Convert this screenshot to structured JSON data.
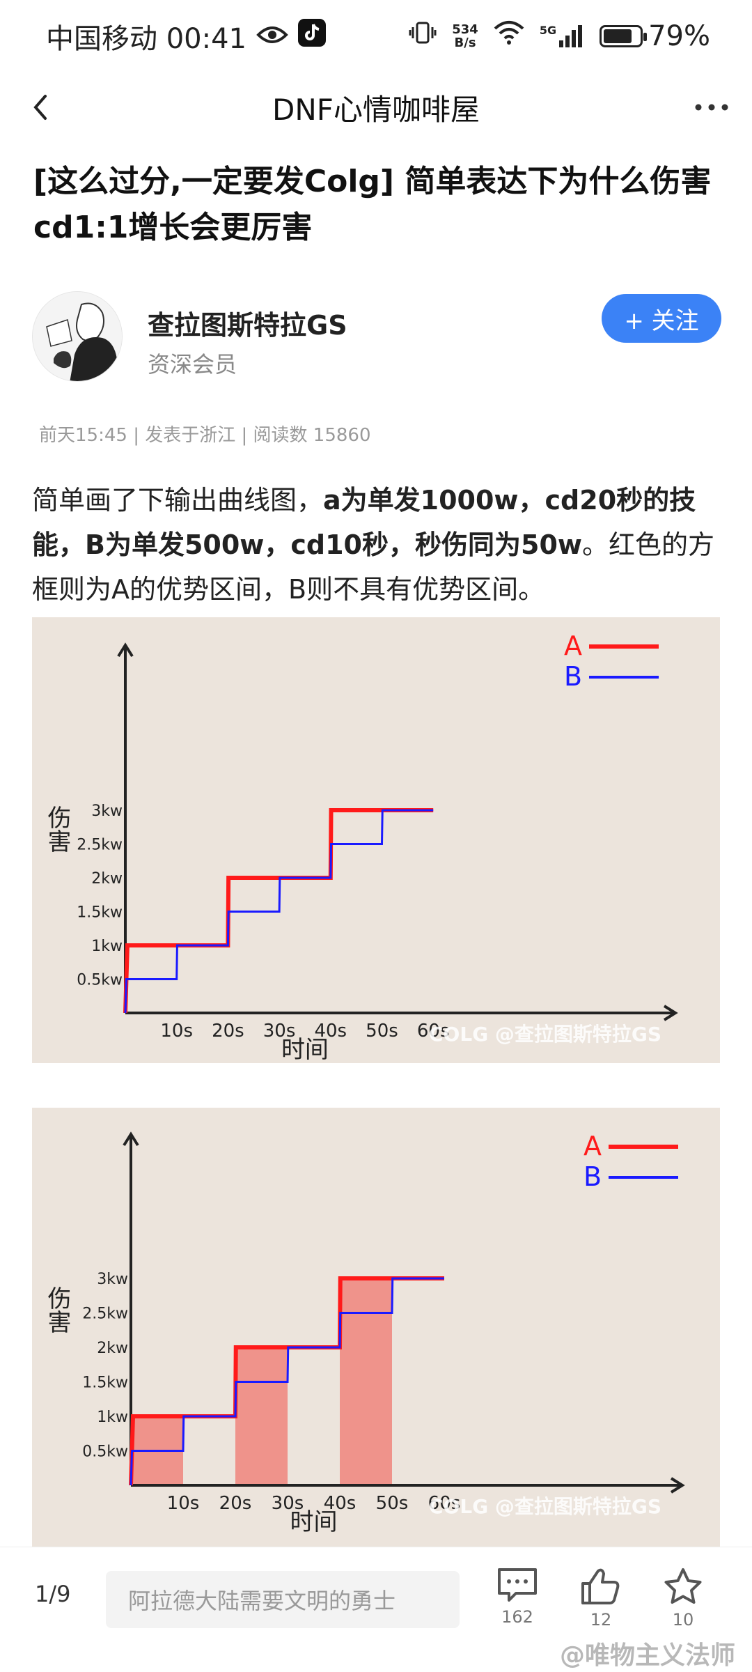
{
  "status_bar": {
    "carrier_time": "中国移动 00:41",
    "net_speed_value": "534",
    "net_speed_unit": "B/s",
    "network": "5G",
    "battery": "79%",
    "battery_level": 0.79
  },
  "nav": {
    "title": "DNF心情咖啡屋"
  },
  "post": {
    "title": "[这么过分,一定要发Colg] 简单表达下为什么伤害cd1:1增长会更厉害",
    "author_name": "查拉图斯特拉GS",
    "author_level": "资深会员",
    "follow_label": "+ 关注",
    "meta": "前天15:45 | 发表于浙江 | 阅读数 15860",
    "body_1": "简单画了下输出曲线图，",
    "body_bold_1": "a为单发1000w，cd20秒的技能，B为单发500w，cd10秒，秒伤同为50w",
    "body_2": "。红色的方框则为A的优势区间，B则不具有优势区间。"
  },
  "chart_data": [
    {
      "type": "line",
      "ylabel": "伤害",
      "xlabel": "时间",
      "x_ticks": [
        "10s",
        "20s",
        "30s",
        "40s",
        "50s",
        "60s"
      ],
      "y_ticks": [
        "0.5kw",
        "1kw",
        "1.5kw",
        "2kw",
        "2.5kw",
        "3kw"
      ],
      "series": [
        {
          "name": "A",
          "color": "#ff1a1a",
          "x": [
            0,
            0.4,
            20,
            20.1,
            40,
            40.1,
            60
          ],
          "y": [
            0,
            1,
            1,
            2,
            2,
            3,
            3
          ]
        },
        {
          "name": "B",
          "color": "#1a1aff",
          "x": [
            0,
            0.2,
            10,
            10.1,
            20,
            20.1,
            30,
            30.1,
            40,
            40.1,
            50,
            50.1,
            60
          ],
          "y": [
            0,
            0.5,
            0.5,
            1,
            1,
            1.5,
            1.5,
            2,
            2,
            2.5,
            2.5,
            3,
            3
          ]
        }
      ],
      "watermark": "@查拉图斯特拉GS"
    },
    {
      "type": "line",
      "ylabel": "伤害",
      "xlabel": "时间",
      "x_ticks": [
        "10s",
        "20s",
        "30s",
        "40s",
        "50s",
        "60s"
      ],
      "y_ticks": [
        "0.5kw",
        "1kw",
        "1.5kw",
        "2kw",
        "2.5kw",
        "3kw"
      ],
      "series": [
        {
          "name": "A",
          "color": "#ff1a1a",
          "x": [
            0,
            0.4,
            20,
            20.1,
            40,
            40.1,
            60
          ],
          "y": [
            0,
            1,
            1,
            2,
            2,
            3,
            3
          ]
        },
        {
          "name": "B",
          "color": "#1a1aff",
          "x": [
            0,
            0.2,
            10,
            10.1,
            20,
            20.1,
            30,
            30.1,
            40,
            40.1,
            50,
            50.1,
            60
          ],
          "y": [
            0,
            0.5,
            0.5,
            1,
            1,
            1.5,
            1.5,
            2,
            2,
            2.5,
            2.5,
            3,
            3
          ]
        }
      ],
      "highlight_regions": [
        {
          "x": [
            0,
            10
          ],
          "y": [
            0,
            1
          ]
        },
        {
          "x": [
            20,
            30
          ],
          "y": [
            0,
            2
          ]
        },
        {
          "x": [
            40,
            50
          ],
          "y": [
            0,
            3
          ]
        }
      ],
      "highlight_color": "#f08a82",
      "watermark": "@查拉图斯特拉GS"
    }
  ],
  "bottom": {
    "page_indicator": "1/9",
    "comment_placeholder": "阿拉德大陆需要文明的勇士",
    "comment_count": "162",
    "like_count": "12",
    "star_count": "10",
    "watermark": "@唯物主义法师"
  }
}
